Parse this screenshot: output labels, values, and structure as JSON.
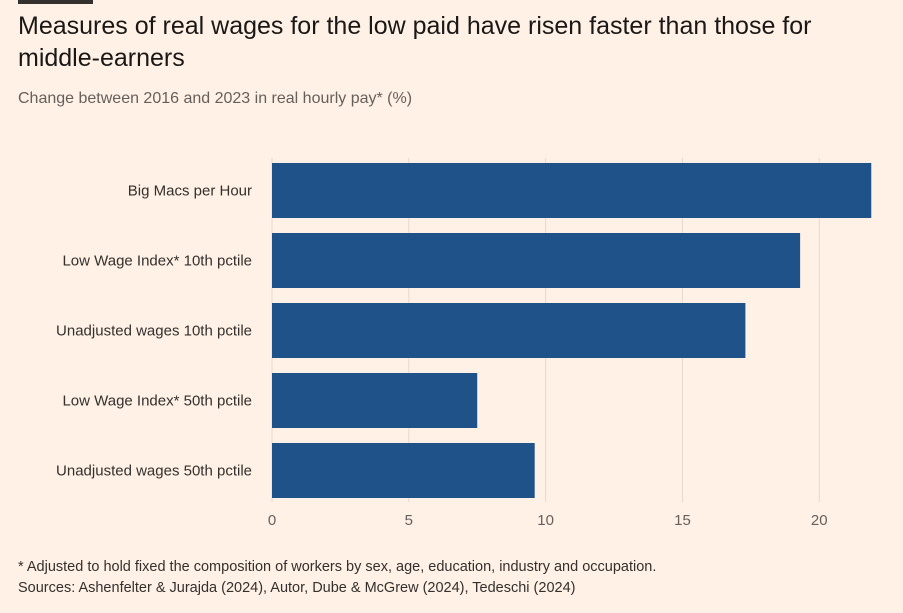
{
  "title": "Measures of real wages for the low paid have risen faster than those for middle-earners",
  "subtitle": "Change between 2016 and 2023 in real hourly pay* (%)",
  "footnote": "* Adjusted to hold fixed the composition of workers by sex, age, education, industry and occupation.",
  "sources": "Sources: Ashenfelter & Jurajda (2024), Autor, Dube & McGrew (2024), Tedeschi (2024)",
  "colors": {
    "bar": "#1F5288",
    "background": "#FFF1E5",
    "grid": "#E6D9CE"
  },
  "chart_data": {
    "type": "bar",
    "orientation": "horizontal",
    "categories": [
      "Big Macs per Hour",
      "Low Wage Index* 10th pctile",
      "Unadjusted wages 10th pctile",
      "Low Wage Index* 50th pctile",
      "Unadjusted wages 50th pctile"
    ],
    "values": [
      21.9,
      19.3,
      17.3,
      7.5,
      9.6
    ],
    "xlim": [
      0,
      22
    ],
    "xticks": [
      0,
      5,
      10,
      15,
      20
    ],
    "grid": true
  }
}
